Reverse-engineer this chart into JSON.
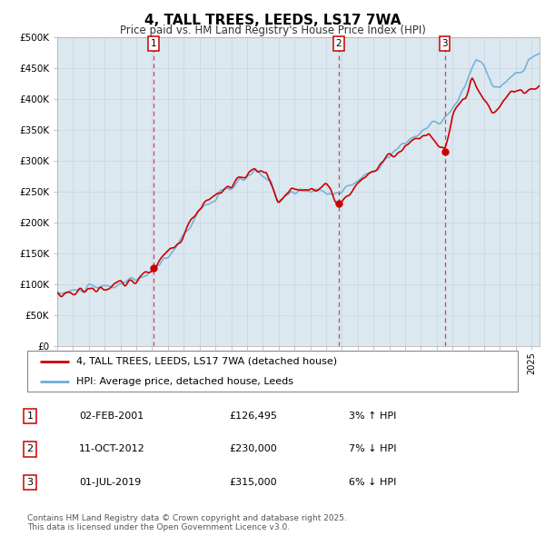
{
  "title": "4, TALL TREES, LEEDS, LS17 7WA",
  "subtitle": "Price paid vs. HM Land Registry's House Price Index (HPI)",
  "ylim": [
    0,
    500000
  ],
  "yticks": [
    0,
    50000,
    100000,
    150000,
    200000,
    250000,
    300000,
    350000,
    400000,
    450000,
    500000
  ],
  "ytick_labels": [
    "£0",
    "£50K",
    "£100K",
    "£150K",
    "£200K",
    "£250K",
    "£300K",
    "£350K",
    "£400K",
    "£450K",
    "£500K"
  ],
  "hpi_color": "#6baed6",
  "price_color": "#cc0000",
  "transaction_color": "#cc0000",
  "grid_color": "#c8d4e0",
  "bg_color": "#dce8f0",
  "transactions": [
    {
      "date": 2001.09,
      "price": 126495,
      "label": "1"
    },
    {
      "date": 2012.79,
      "price": 230000,
      "label": "2"
    },
    {
      "date": 2019.5,
      "price": 315000,
      "label": "3"
    }
  ],
  "legend_house_label": "4, TALL TREES, LEEDS, LS17 7WA (detached house)",
  "legend_hpi_label": "HPI: Average price, detached house, Leeds",
  "table_data": [
    {
      "num": "1",
      "date": "02-FEB-2001",
      "price": "£126,495",
      "pct": "3%",
      "dir": "↑",
      "rel": "HPI"
    },
    {
      "num": "2",
      "date": "11-OCT-2012",
      "price": "£230,000",
      "pct": "7%",
      "dir": "↓",
      "rel": "HPI"
    },
    {
      "num": "3",
      "date": "01-JUL-2019",
      "price": "£315,000",
      "pct": "6%",
      "dir": "↓",
      "rel": "HPI"
    }
  ],
  "footnote": "Contains HM Land Registry data © Crown copyright and database right 2025.\nThis data is licensed under the Open Government Licence v3.0.",
  "xmin": 1995,
  "xmax": 2025.5
}
